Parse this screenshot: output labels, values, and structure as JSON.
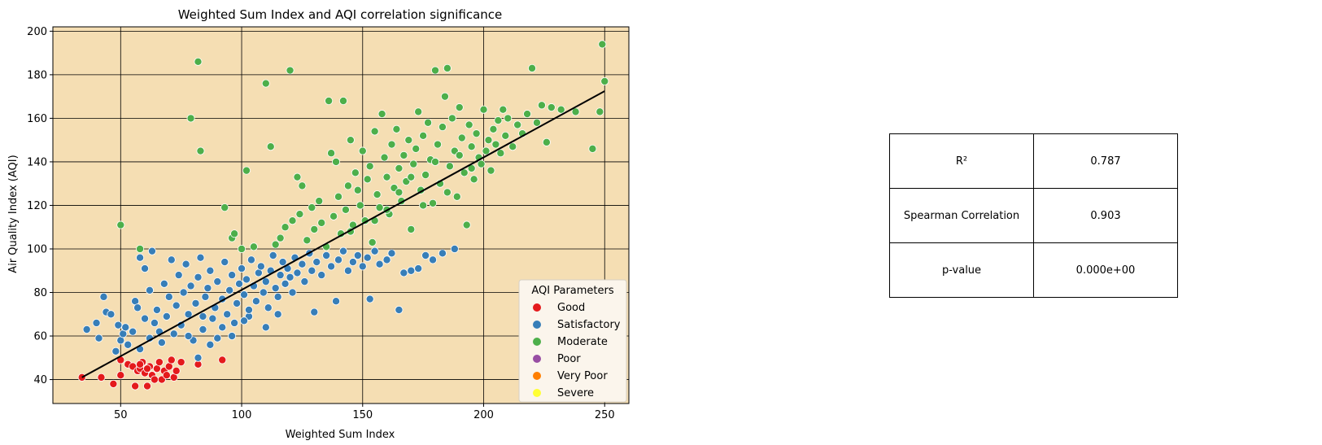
{
  "chart_data": {
    "type": "scatter",
    "title": "Weighted Sum Index and AQI correlation significance",
    "xlabel": "Weighted Sum Index",
    "ylabel": "Air Quality Index (AQI)",
    "xlim": [
      22,
      260
    ],
    "ylim": [
      29,
      202
    ],
    "xticks": [
      50,
      100,
      150,
      200,
      250
    ],
    "yticks": [
      40,
      60,
      80,
      100,
      120,
      140,
      160,
      180,
      200
    ],
    "grid": true,
    "background": "#f5deb3",
    "legend": {
      "title": "AQI Parameters",
      "placement": "lower-right",
      "entries": [
        {
          "name": "Good",
          "color": "#e41a1c"
        },
        {
          "name": "Satisfactory",
          "color": "#377eb8"
        },
        {
          "name": "Moderate",
          "color": "#4daf4a"
        },
        {
          "name": "Poor",
          "color": "#984ea3"
        },
        {
          "name": "Very Poor",
          "color": "#ff7f00"
        },
        {
          "name": "Severe",
          "color": "#ffff33"
        }
      ]
    },
    "regression_line": {
      "x": [
        34,
        250
      ],
      "y": [
        41,
        172.5
      ],
      "color": "#000000"
    },
    "series": [
      {
        "name": "Good",
        "color": "#e41a1c",
        "points": [
          [
            34,
            41
          ],
          [
            42,
            41
          ],
          [
            47,
            38
          ],
          [
            50,
            49
          ],
          [
            50,
            42
          ],
          [
            53,
            47
          ],
          [
            55,
            46
          ],
          [
            56,
            37
          ],
          [
            57,
            44
          ],
          [
            58,
            45
          ],
          [
            59,
            48
          ],
          [
            60,
            43
          ],
          [
            61,
            37
          ],
          [
            62,
            46
          ],
          [
            63,
            42
          ],
          [
            64,
            40
          ],
          [
            65,
            45
          ],
          [
            66,
            48
          ],
          [
            67,
            40
          ],
          [
            68,
            44
          ],
          [
            70,
            46
          ],
          [
            71,
            49
          ],
          [
            72,
            41
          ],
          [
            73,
            44
          ],
          [
            75,
            48
          ],
          [
            82,
            47
          ],
          [
            92,
            49
          ],
          [
            58,
            47
          ],
          [
            61,
            45
          ],
          [
            69,
            42
          ]
        ]
      },
      {
        "name": "Satisfactory",
        "color": "#377eb8",
        "points": [
          [
            36,
            63
          ],
          [
            40,
            66
          ],
          [
            41,
            59
          ],
          [
            43,
            78
          ],
          [
            44,
            71
          ],
          [
            46,
            70
          ],
          [
            48,
            53
          ],
          [
            49,
            65
          ],
          [
            50,
            58
          ],
          [
            51,
            61
          ],
          [
            52,
            64
          ],
          [
            53,
            56
          ],
          [
            55,
            62
          ],
          [
            56,
            76
          ],
          [
            57,
            73
          ],
          [
            58,
            96
          ],
          [
            58,
            54
          ],
          [
            60,
            68
          ],
          [
            60,
            91
          ],
          [
            62,
            59
          ],
          [
            62,
            81
          ],
          [
            63,
            99
          ],
          [
            64,
            66
          ],
          [
            65,
            72
          ],
          [
            66,
            62
          ],
          [
            67,
            57
          ],
          [
            68,
            84
          ],
          [
            69,
            69
          ],
          [
            70,
            78
          ],
          [
            71,
            95
          ],
          [
            72,
            61
          ],
          [
            73,
            74
          ],
          [
            74,
            88
          ],
          [
            75,
            65
          ],
          [
            76,
            80
          ],
          [
            77,
            93
          ],
          [
            78,
            70
          ],
          [
            79,
            83
          ],
          [
            80,
            58
          ],
          [
            81,
            75
          ],
          [
            82,
            87
          ],
          [
            82,
            50
          ],
          [
            83,
            96
          ],
          [
            84,
            63
          ],
          [
            85,
            78
          ],
          [
            86,
            82
          ],
          [
            87,
            90
          ],
          [
            88,
            68
          ],
          [
            89,
            73
          ],
          [
            90,
            85
          ],
          [
            90,
            59
          ],
          [
            92,
            77
          ],
          [
            93,
            94
          ],
          [
            94,
            70
          ],
          [
            95,
            81
          ],
          [
            96,
            88
          ],
          [
            97,
            66
          ],
          [
            98,
            75
          ],
          [
            99,
            84
          ],
          [
            100,
            91
          ],
          [
            101,
            79
          ],
          [
            102,
            86
          ],
          [
            103,
            69
          ],
          [
            104,
            95
          ],
          [
            105,
            83
          ],
          [
            106,
            76
          ],
          [
            107,
            89
          ],
          [
            108,
            92
          ],
          [
            109,
            80
          ],
          [
            110,
            85
          ],
          [
            111,
            73
          ],
          [
            112,
            90
          ],
          [
            113,
            97
          ],
          [
            114,
            82
          ],
          [
            115,
            78
          ],
          [
            116,
            88
          ],
          [
            117,
            94
          ],
          [
            118,
            84
          ],
          [
            119,
            91
          ],
          [
            120,
            87
          ],
          [
            121,
            80
          ],
          [
            122,
            96
          ],
          [
            123,
            89
          ],
          [
            125,
            93
          ],
          [
            126,
            85
          ],
          [
            128,
            98
          ],
          [
            129,
            90
          ],
          [
            130,
            71
          ],
          [
            131,
            94
          ],
          [
            133,
            88
          ],
          [
            135,
            97
          ],
          [
            137,
            92
          ],
          [
            139,
            76
          ],
          [
            140,
            95
          ],
          [
            142,
            99
          ],
          [
            144,
            90
          ],
          [
            146,
            94
          ],
          [
            148,
            97
          ],
          [
            150,
            92
          ],
          [
            152,
            96
          ],
          [
            153,
            77
          ],
          [
            155,
            99
          ],
          [
            157,
            93
          ],
          [
            160,
            95
          ],
          [
            162,
            98
          ],
          [
            165,
            72
          ],
          [
            167,
            89
          ],
          [
            170,
            90
          ],
          [
            173,
            91
          ],
          [
            176,
            97
          ],
          [
            179,
            95
          ],
          [
            183,
            98
          ],
          [
            188,
            100
          ],
          [
            110,
            64
          ],
          [
            115,
            70
          ],
          [
            96,
            60
          ],
          [
            87,
            56
          ],
          [
            92,
            64
          ],
          [
            103,
            72
          ],
          [
            78,
            60
          ],
          [
            84,
            69
          ],
          [
            101,
            67
          ]
        ]
      },
      {
        "name": "Moderate",
        "color": "#4daf4a",
        "points": [
          [
            50,
            111
          ],
          [
            58,
            100
          ],
          [
            79,
            160
          ],
          [
            82,
            186
          ],
          [
            83,
            145
          ],
          [
            93,
            119
          ],
          [
            96,
            105
          ],
          [
            97,
            107
          ],
          [
            100,
            100
          ],
          [
            102,
            136
          ],
          [
            105,
            101
          ],
          [
            110,
            176
          ],
          [
            112,
            147
          ],
          [
            114,
            102
          ],
          [
            116,
            105
          ],
          [
            118,
            110
          ],
          [
            120,
            182
          ],
          [
            121,
            113
          ],
          [
            123,
            133
          ],
          [
            124,
            116
          ],
          [
            125,
            129
          ],
          [
            127,
            104
          ],
          [
            129,
            119
          ],
          [
            130,
            109
          ],
          [
            132,
            122
          ],
          [
            133,
            112
          ],
          [
            135,
            101
          ],
          [
            136,
            168
          ],
          [
            137,
            144
          ],
          [
            138,
            115
          ],
          [
            139,
            140
          ],
          [
            140,
            124
          ],
          [
            141,
            107
          ],
          [
            142,
            168
          ],
          [
            143,
            118
          ],
          [
            144,
            129
          ],
          [
            145,
            150
          ],
          [
            146,
            111
          ],
          [
            147,
            135
          ],
          [
            148,
            127
          ],
          [
            149,
            120
          ],
          [
            150,
            145
          ],
          [
            151,
            113
          ],
          [
            152,
            132
          ],
          [
            153,
            138
          ],
          [
            154,
            103
          ],
          [
            155,
            154
          ],
          [
            156,
            125
          ],
          [
            157,
            119
          ],
          [
            158,
            162
          ],
          [
            159,
            142
          ],
          [
            160,
            133
          ],
          [
            161,
            116
          ],
          [
            162,
            148
          ],
          [
            163,
            128
          ],
          [
            164,
            155
          ],
          [
            165,
            137
          ],
          [
            166,
            122
          ],
          [
            167,
            143
          ],
          [
            168,
            131
          ],
          [
            169,
            150
          ],
          [
            170,
            109
          ],
          [
            171,
            139
          ],
          [
            172,
            146
          ],
          [
            173,
            163
          ],
          [
            174,
            127
          ],
          [
            175,
            152
          ],
          [
            176,
            134
          ],
          [
            177,
            158
          ],
          [
            178,
            141
          ],
          [
            179,
            121
          ],
          [
            180,
            182
          ],
          [
            181,
            148
          ],
          [
            182,
            130
          ],
          [
            183,
            156
          ],
          [
            184,
            170
          ],
          [
            185,
            183
          ],
          [
            186,
            138
          ],
          [
            187,
            160
          ],
          [
            188,
            145
          ],
          [
            189,
            124
          ],
          [
            190,
            165
          ],
          [
            191,
            151
          ],
          [
            192,
            135
          ],
          [
            193,
            111
          ],
          [
            194,
            157
          ],
          [
            195,
            147
          ],
          [
            196,
            132
          ],
          [
            197,
            153
          ],
          [
            198,
            142
          ],
          [
            199,
            139
          ],
          [
            200,
            164
          ],
          [
            201,
            145
          ],
          [
            202,
            150
          ],
          [
            203,
            136
          ],
          [
            204,
            155
          ],
          [
            205,
            148
          ],
          [
            206,
            159
          ],
          [
            207,
            144
          ],
          [
            208,
            164
          ],
          [
            209,
            152
          ],
          [
            210,
            160
          ],
          [
            212,
            147
          ],
          [
            214,
            157
          ],
          [
            216,
            153
          ],
          [
            218,
            162
          ],
          [
            220,
            183
          ],
          [
            222,
            158
          ],
          [
            224,
            166
          ],
          [
            226,
            149
          ],
          [
            228,
            165
          ],
          [
            232,
            164
          ],
          [
            238,
            163
          ],
          [
            245,
            146
          ],
          [
            248,
            163
          ],
          [
            249,
            194
          ],
          [
            250,
            177
          ],
          [
            160,
            118
          ],
          [
            165,
            126
          ],
          [
            175,
            120
          ],
          [
            185,
            126
          ],
          [
            195,
            137
          ],
          [
            155,
            113
          ],
          [
            145,
            108
          ],
          [
            170,
            133
          ],
          [
            180,
            140
          ],
          [
            190,
            143
          ]
        ]
      },
      {
        "name": "Poor",
        "color": "#984ea3",
        "points": []
      },
      {
        "name": "Very Poor",
        "color": "#ff7f00",
        "points": []
      },
      {
        "name": "Severe",
        "color": "#ffff33",
        "points": []
      }
    ]
  },
  "stats_table": {
    "rows": [
      {
        "label": "R²",
        "value": "0.787"
      },
      {
        "label": "Spearman Correlation",
        "value": "0.903"
      },
      {
        "label": "p-value",
        "value": "0.000e+00"
      }
    ]
  }
}
